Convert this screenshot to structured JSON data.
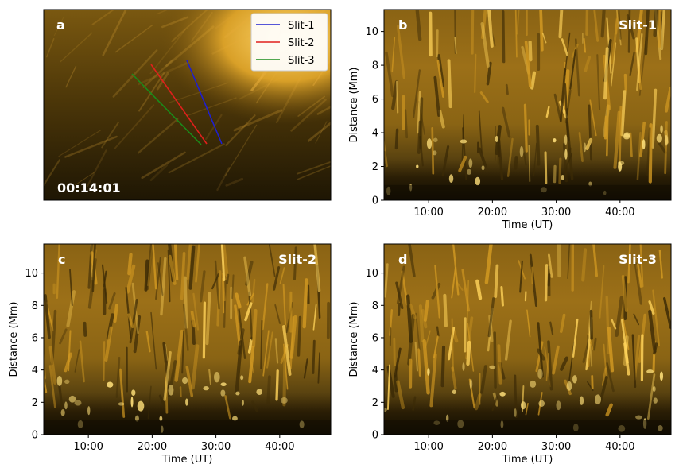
{
  "figure": {
    "panel_a": {
      "label": "a",
      "timestamp": "00:14:01",
      "legend": [
        {
          "label": "Slit-1",
          "color": "#1f1fd0"
        },
        {
          "label": "Slit-2",
          "color": "#e0201c"
        },
        {
          "label": "Slit-3",
          "color": "#1a8c1a"
        }
      ]
    },
    "panels": [
      {
        "label": "b",
        "title": "Slit-1",
        "show_xlabel": true,
        "show_ylabel": true
      },
      {
        "label": "c",
        "title": "Slit-2",
        "show_xlabel": true,
        "show_ylabel": true
      },
      {
        "label": "d",
        "title": "Slit-3",
        "show_xlabel": true,
        "show_ylabel": true
      }
    ]
  },
  "chart_data": [
    {
      "type": "heatmap",
      "panel": "b",
      "title": "Slit-1",
      "xlabel": "Time (UT)",
      "ylabel": "Distance (Mm)",
      "xlim": [
        3,
        48
      ],
      "ylim": [
        0,
        11.3
      ],
      "xticks": [
        "10:00",
        "20:00",
        "30:00",
        "40:00"
      ],
      "xtick_values": [
        10,
        20,
        30,
        40
      ],
      "yticks": [
        0,
        2,
        4,
        6,
        8,
        10
      ],
      "colormap": [
        "#0d0a02",
        "#3a2a07",
        "#7a5a10",
        "#c08e18",
        "#ffd060"
      ]
    },
    {
      "type": "heatmap",
      "panel": "c",
      "title": "Slit-2",
      "xlabel": "Time (UT)",
      "ylabel": "Distance (Mm)",
      "xlim": [
        3,
        48
      ],
      "ylim": [
        0,
        11.8
      ],
      "xticks": [
        "10:00",
        "20:00",
        "30:00",
        "40:00"
      ],
      "xtick_values": [
        10,
        20,
        30,
        40
      ],
      "yticks": [
        0,
        2,
        4,
        6,
        8,
        10
      ],
      "colormap": [
        "#0d0a02",
        "#3a2a07",
        "#7a5a10",
        "#c08e18",
        "#ffd060"
      ]
    },
    {
      "type": "heatmap",
      "panel": "d",
      "title": "Slit-3",
      "xlabel": "Time (UT)",
      "ylabel": "Distance (Mm)",
      "xlim": [
        3,
        48
      ],
      "ylim": [
        0,
        11.8
      ],
      "xticks": [
        "10:00",
        "20:00",
        "30:00",
        "40:00"
      ],
      "xtick_values": [
        10,
        20,
        30,
        40
      ],
      "yticks": [
        0,
        2,
        4,
        6,
        8,
        10
      ],
      "colormap": [
        "#0d0a02",
        "#3a2a07",
        "#7a5a10",
        "#c08e18",
        "#ffd060"
      ]
    }
  ]
}
